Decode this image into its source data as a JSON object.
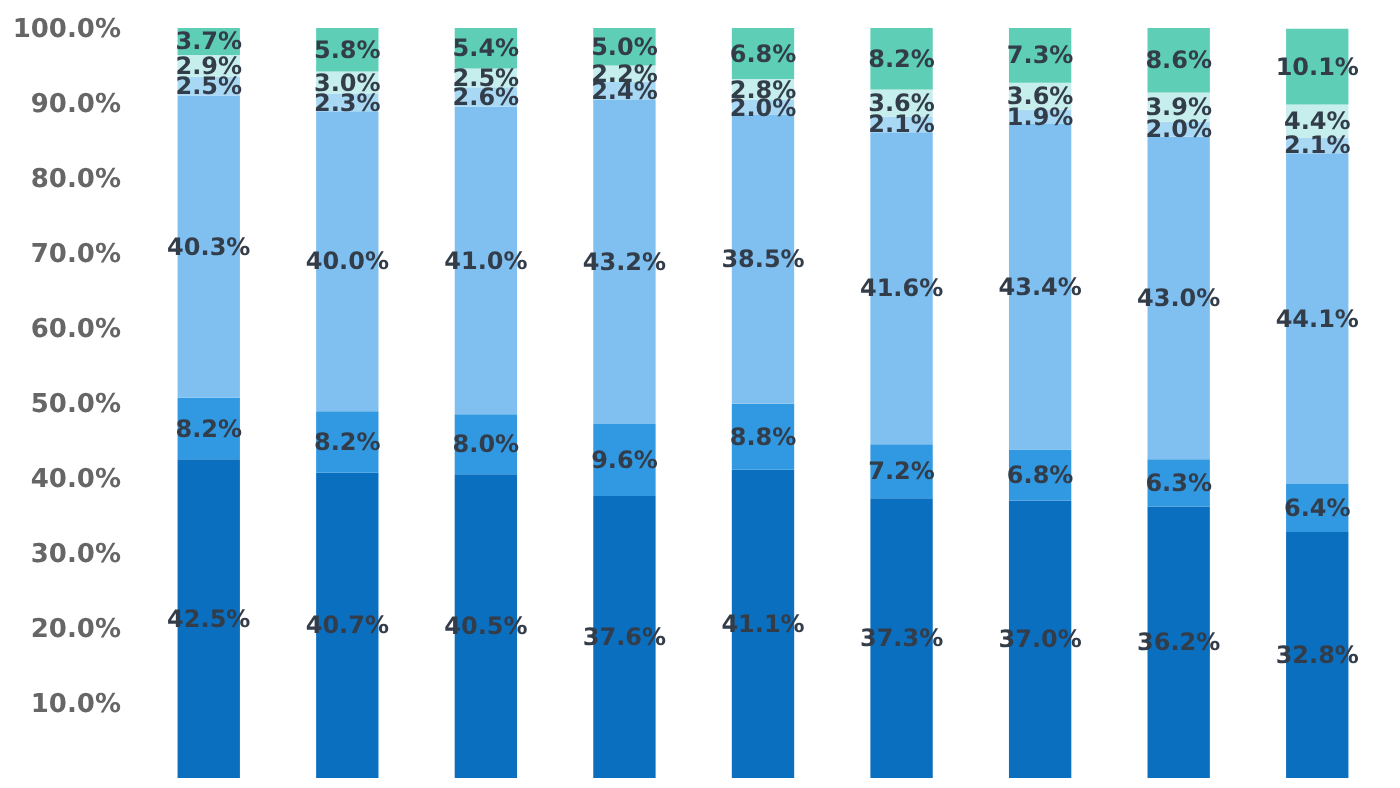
{
  "chart_data": {
    "type": "bar",
    "stacked": true,
    "categories": [
      null,
      null,
      null,
      null,
      null,
      null,
      null,
      null,
      null
    ],
    "ylim": [
      0,
      100
    ],
    "yticks": [
      {
        "value": 10,
        "label": "10.0%"
      },
      {
        "value": 20,
        "label": "20.0%"
      },
      {
        "value": 30,
        "label": "30.0%"
      },
      {
        "value": 40,
        "label": "40.0%"
      },
      {
        "value": 50,
        "label": "50.0%"
      },
      {
        "value": 60,
        "label": "60.0%"
      },
      {
        "value": 70,
        "label": "70.0%"
      },
      {
        "value": 80,
        "label": "80.0%"
      },
      {
        "value": 90,
        "label": "90.0%"
      },
      {
        "value": 100,
        "label": "100.0%"
      }
    ],
    "tick_labels": "y",
    "grid": false,
    "series": [
      {
        "color": "#0b6fc0",
        "values": [
          42.5,
          40.7,
          40.5,
          37.6,
          41.1,
          37.3,
          37.0,
          36.2,
          32.8
        ],
        "value_labels": [
          "42.5%",
          "40.7%",
          "40.5%",
          "37.6%",
          "41.1%",
          "37.3%",
          "37.0%",
          "36.2%",
          "32.8%"
        ]
      },
      {
        "color": "#3198e2",
        "values": [
          8.2,
          8.2,
          8.0,
          9.6,
          8.8,
          7.2,
          6.8,
          6.3,
          6.4
        ],
        "value_labels": [
          "8.2%",
          "8.2%",
          "8.0%",
          "9.6%",
          "8.8%",
          "7.2%",
          "6.8%",
          "6.3%",
          "6.4%"
        ]
      },
      {
        "color": "#7fc0f0",
        "values": [
          40.3,
          40.0,
          41.0,
          43.2,
          38.5,
          41.6,
          43.4,
          43.0,
          44.1
        ],
        "value_labels": [
          "40.3%",
          "40.0%",
          "41.0%",
          "43.2%",
          "38.5%",
          "41.6%",
          "43.4%",
          "43.0%",
          "44.1%"
        ]
      },
      {
        "color": "#a8d8f4",
        "values": [
          2.5,
          2.3,
          2.6,
          2.4,
          2.0,
          2.1,
          1.9,
          2.0,
          2.1
        ],
        "value_labels": [
          "2.5%",
          "2.3%",
          "2.6%",
          "2.4%",
          "2.0%",
          "2.1%",
          "1.9%",
          "2.0%",
          "2.1%"
        ]
      },
      {
        "color": "#c6eeec",
        "values": [
          2.9,
          3.0,
          2.5,
          2.2,
          2.8,
          3.6,
          3.6,
          3.9,
          4.4
        ],
        "value_labels": [
          "2.9%",
          "3.0%",
          "2.5%",
          "2.2%",
          "2.8%",
          "3.6%",
          "3.6%",
          "3.9%",
          "4.4%"
        ]
      },
      {
        "color": "#5ecfb6",
        "values": [
          3.7,
          5.8,
          5.4,
          5.0,
          6.8,
          8.2,
          7.3,
          8.6,
          10.1
        ],
        "value_labels": [
          "3.7%",
          "5.8%",
          "5.4%",
          "5.0%",
          "6.8%",
          "8.2%",
          "7.3%",
          "8.6%",
          "10.1%"
        ]
      }
    ]
  }
}
